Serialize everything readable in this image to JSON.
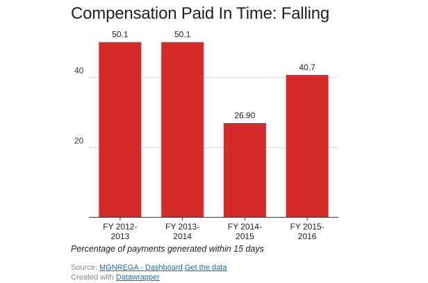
{
  "chart": {
    "title": "Compensation Paid In Time: Falling",
    "notes": "Percentage of payments generated within 15 days"
  },
  "footer": {
    "source_prefix": "Source:",
    "source_link": "MGNREGA - Dashboard",
    "data_link": "Get the data",
    "created_prefix": "Created with",
    "created_link": "Datawrapper"
  },
  "colors": {
    "bar": "#d42a2a",
    "grid": "#d9d9d9",
    "axis": "#333333"
  },
  "chart_data": {
    "type": "bar",
    "title": "Compensation Paid In Time: Falling",
    "categories": [
      [
        "FY 2012-",
        "2013"
      ],
      [
        "FY 2013-",
        "2014"
      ],
      [
        "FY 2014-",
        "2015"
      ],
      [
        "FY 2015-",
        "2016"
      ]
    ],
    "values": [
      50.1,
      50.1,
      26.9,
      40.7
    ],
    "value_labels": [
      "50.1",
      "50.1",
      "26.90",
      "40.7"
    ],
    "yticks": [
      20,
      40
    ],
    "ylim": [
      0,
      55
    ],
    "grid": true,
    "xlabel": "",
    "ylabel": ""
  }
}
